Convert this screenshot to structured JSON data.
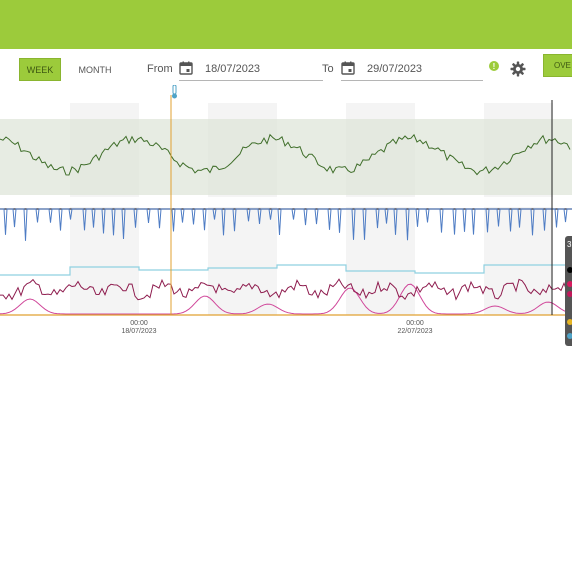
{
  "toolbar": {
    "week_label": "WEEK",
    "month_label": "MONTH",
    "from_label": "From",
    "from_date": "18/07/2023",
    "to_label": "To",
    "to_date": "29/07/2023",
    "overview_label": "OVE",
    "alert_symbol": "!"
  },
  "axis": {
    "ticks": [
      {
        "time": "00:00",
        "date": "18/07/2023"
      },
      {
        "time": "00:00",
        "date": "22/07/2023"
      }
    ]
  },
  "legend": {
    "count_label": "3",
    "dot_colors": [
      "#000000",
      "#d81b60",
      "#c2185b",
      "#e6b422",
      "#4fa3c7"
    ]
  },
  "colors": {
    "accent": "#9ccb3b",
    "temperature_line": "#3f6e2a",
    "blue_line": "#4e7cc4",
    "cyan_line": "#8fd0e0",
    "crimson_line": "#8e1c4e",
    "magenta_line": "#d0479a",
    "orange_axis": "#e0a030"
  }
}
